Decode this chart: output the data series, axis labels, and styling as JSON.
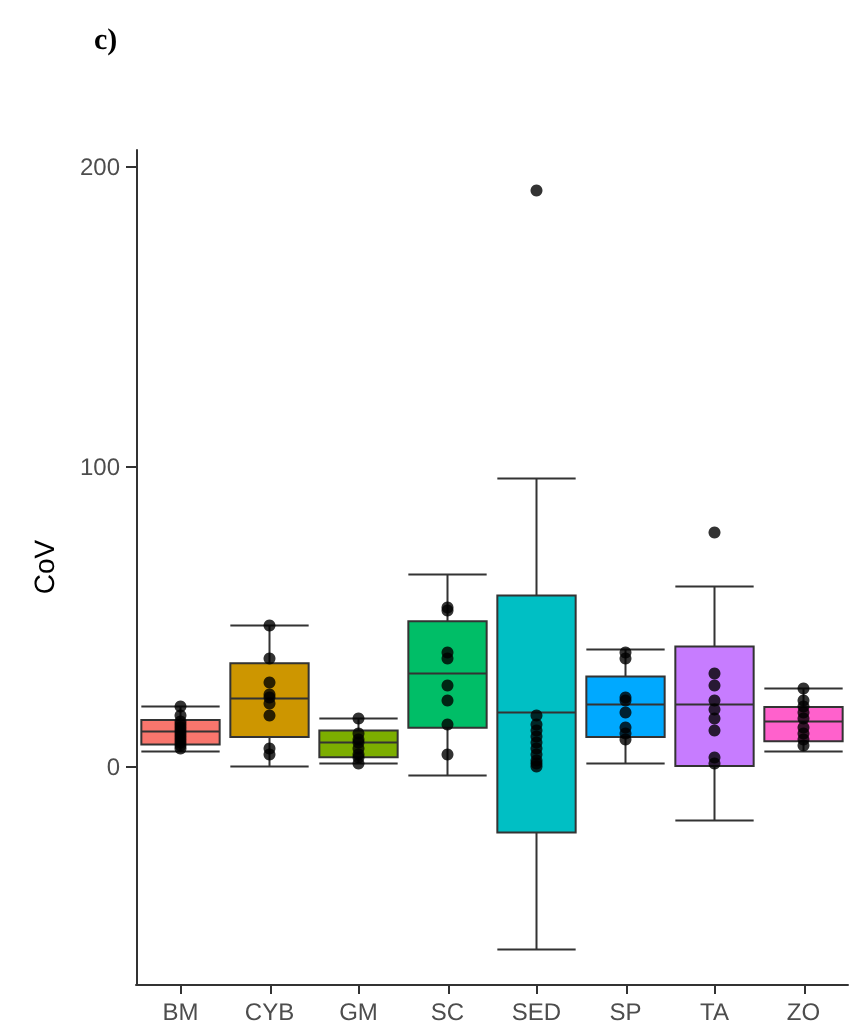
{
  "chart_data": {
    "type": "box",
    "title": "c)",
    "ylabel": "CoV",
    "categories": [
      "BM",
      "CYB",
      "GM",
      "SC",
      "SED",
      "SP",
      "TA",
      "ZO"
    ],
    "colors": [
      "#f8766d",
      "#cd9600",
      "#7cae00",
      "#00be67",
      "#00bfc4",
      "#00a9ff",
      "#c77cff",
      "#ff61cc"
    ],
    "boxes": [
      {
        "low": 5,
        "q1": 7.3,
        "median": 11.7,
        "q3": 15.5,
        "high": 20
      },
      {
        "low": 0,
        "q1": 9.8,
        "median": 22.7,
        "q3": 34.4,
        "high": 47
      },
      {
        "low": 1,
        "q1": 3.1,
        "median": 8,
        "q3": 12,
        "high": 16
      },
      {
        "low": -3,
        "q1": 12.9,
        "median": 31,
        "q3": 48.4,
        "high": 64
      },
      {
        "low": -61,
        "q1": -22,
        "median": 18,
        "q3": 57,
        "high": 96,
        "outliers": [
          192
        ]
      },
      {
        "low": 1,
        "q1": 9.8,
        "median": 20.7,
        "q3": 30,
        "high": 39
      },
      {
        "low": -18,
        "q1": 0.2,
        "median": 20.7,
        "q3": 40,
        "high": 60,
        "outliers": [
          78
        ]
      },
      {
        "low": 5,
        "q1": 8.4,
        "median": 15,
        "q3": 19.8,
        "high": 26
      }
    ],
    "series": [
      {
        "type": "scatter",
        "color": "#000000",
        "x": [
          "BM",
          "BM",
          "BM",
          "BM",
          "BM",
          "BM",
          "BM",
          "BM",
          "BM",
          "BM",
          "BM",
          "BM",
          "CYB",
          "CYB",
          "CYB",
          "CYB",
          "CYB",
          "CYB",
          "CYB",
          "CYB",
          "CYB",
          "GM",
          "GM",
          "GM",
          "GM",
          "GM",
          "GM",
          "GM",
          "GM",
          "SC",
          "SC",
          "SC",
          "SC",
          "SC",
          "SC",
          "SC",
          "SC",
          "SED",
          "SED",
          "SED",
          "SED",
          "SED",
          "SED",
          "SED",
          "SED",
          "SED",
          "SED",
          "SP",
          "SP",
          "SP",
          "SP",
          "SP",
          "SP",
          "SP",
          "SP",
          "TA",
          "TA",
          "TA",
          "TA",
          "TA",
          "TA",
          "TA",
          "TA",
          "ZO",
          "ZO",
          "ZO",
          "ZO",
          "ZO",
          "ZO",
          "ZO",
          "ZO",
          "ZO"
        ],
        "values": [
          20,
          17,
          15,
          14,
          13,
          12,
          11,
          10,
          9,
          8,
          7,
          6,
          47,
          36,
          28,
          24,
          23,
          21,
          17,
          6,
          4,
          16,
          11,
          9,
          8,
          6,
          4,
          3,
          1,
          53,
          52,
          38,
          36,
          27,
          22,
          14,
          4,
          17,
          14,
          12,
          10,
          8,
          6,
          4,
          2,
          1,
          0,
          38,
          36,
          23,
          22,
          18,
          13,
          11,
          9,
          31,
          27,
          22,
          19,
          16,
          12,
          3,
          1,
          26,
          22,
          20,
          18,
          16,
          13,
          11,
          9,
          7
        ]
      }
    ],
    "ylim": [
      -72.5,
      205.5
    ],
    "yticks": [
      0,
      100,
      200
    ]
  }
}
